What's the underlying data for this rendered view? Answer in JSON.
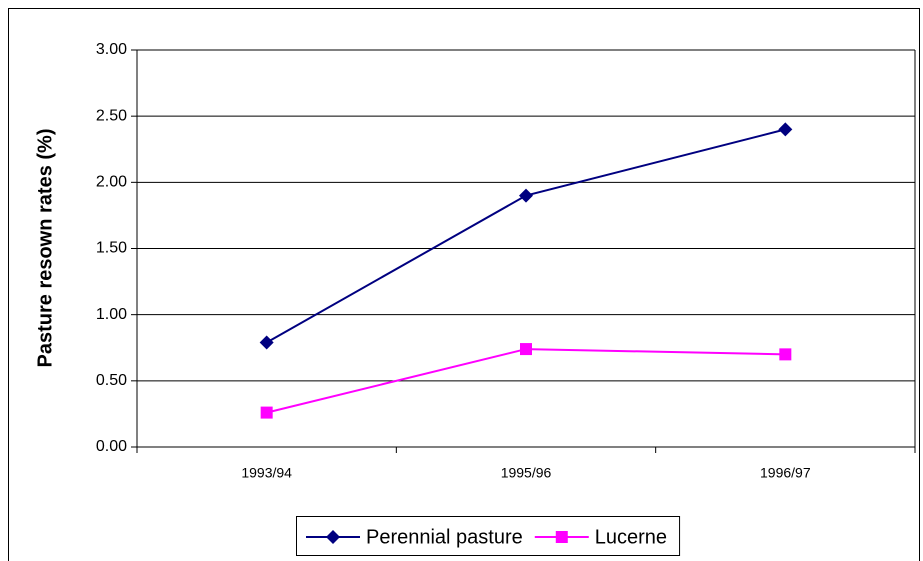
{
  "chart_data": {
    "type": "line",
    "y_label": "Pasture resown rates (%)",
    "categories": [
      "1993/94",
      "1995/96",
      "1996/97"
    ],
    "series": [
      {
        "name": "Perennial pasture",
        "color": "#000080",
        "marker": "diamond",
        "values": [
          0.79,
          1.9,
          2.4
        ]
      },
      {
        "name": "Lucerne",
        "color": "#ff00ff",
        "marker": "square",
        "values": [
          0.26,
          0.74,
          0.7
        ]
      }
    ],
    "ylim": [
      0,
      3
    ],
    "yticks": [
      {
        "value": 0,
        "label": "0.00"
      },
      {
        "value": 0.5,
        "label": "0.50"
      },
      {
        "value": 1,
        "label": "1.00"
      },
      {
        "value": 1.5,
        "label": "1.50"
      },
      {
        "value": 2,
        "label": "2.00"
      },
      {
        "value": 2.5,
        "label": "2.50"
      },
      {
        "value": 3,
        "label": "3.00"
      }
    ],
    "grid": true,
    "legend": "bottom"
  }
}
